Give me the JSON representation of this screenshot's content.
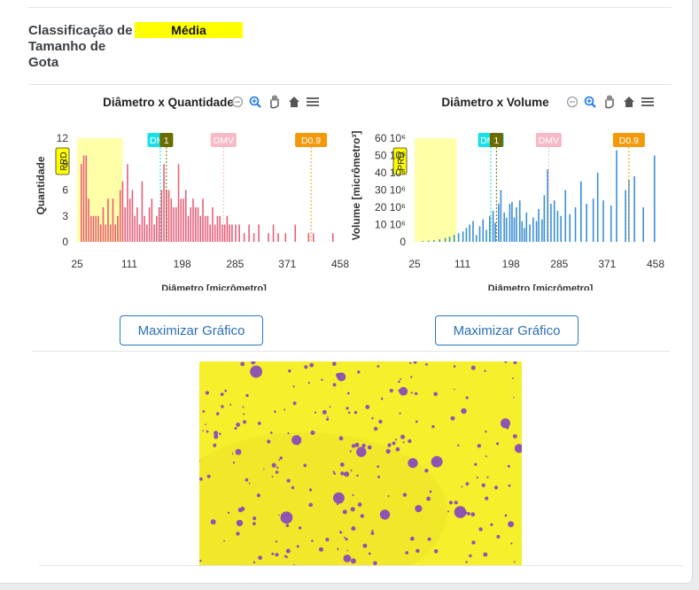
{
  "classification": {
    "label": "Classificação de Tamanho de Gota",
    "value": "Média",
    "value_color": "#ffff00"
  },
  "toolbar_icons": [
    "zoom-out-icon",
    "zoom-in-icon",
    "pan-hand-icon",
    "home-icon",
    "menu-icon"
  ],
  "buttons": {
    "maximize_left": "Maximizar Gráfico",
    "maximize_right": "Maximizar Gráfico"
  },
  "chart_data": [
    {
      "type": "bar",
      "title": "Diâmetro x Quantidade",
      "xlabel": "Diâmetro [micrômetro]",
      "ylabel": "Quantidade",
      "xlim": [
        25,
        458
      ],
      "ylim": [
        0,
        12
      ],
      "x_ticks": [
        "25",
        "111",
        "198",
        "285",
        "371",
        "458"
      ],
      "y_ticks": [
        "0",
        "3",
        "6",
        "9",
        "12"
      ],
      "color": "#e8607a",
      "shaded_band": {
        "label": "PRD",
        "x": [
          25,
          100
        ],
        "color": "#ffffa8"
      },
      "markers": [
        {
          "label": "DMN",
          "x": 162,
          "color": "#19e0e8"
        },
        {
          "label": "1",
          "x": 172,
          "color": "#6b6b00"
        },
        {
          "label": "DMV",
          "x": 266,
          "color": "#f7b9c6"
        },
        {
          "label": "D0.9",
          "x": 410,
          "color": "#f29a0b"
        }
      ],
      "x": [
        32,
        36,
        40,
        44,
        48,
        52,
        56,
        60,
        64,
        68,
        72,
        76,
        80,
        84,
        88,
        92,
        96,
        100,
        104,
        108,
        112,
        116,
        120,
        124,
        128,
        132,
        136,
        140,
        144,
        148,
        152,
        156,
        160,
        164,
        168,
        172,
        176,
        180,
        184,
        188,
        192,
        196,
        200,
        204,
        208,
        212,
        216,
        220,
        224,
        228,
        232,
        236,
        240,
        244,
        248,
        252,
        256,
        260,
        264,
        268,
        272,
        276,
        280,
        286,
        292,
        300,
        308,
        316,
        324,
        340,
        348,
        356,
        368,
        384,
        406,
        414,
        446
      ],
      "values": [
        9,
        10,
        10,
        5,
        3,
        3,
        3,
        3,
        2,
        4,
        2,
        5,
        2,
        5,
        2,
        3,
        6,
        7,
        4,
        9,
        5,
        6,
        3,
        4,
        2,
        7,
        3,
        2,
        4,
        5,
        2,
        3,
        4,
        6,
        9,
        6,
        6,
        5,
        4,
        4,
        9,
        5,
        5,
        6,
        3,
        4,
        5,
        4,
        4,
        3,
        5,
        3,
        3,
        2,
        4,
        2,
        3,
        3,
        2,
        2,
        3,
        2,
        2,
        2,
        2,
        1,
        2,
        1,
        2,
        1,
        2,
        1,
        1,
        2,
        1,
        1,
        1
      ]
    },
    {
      "type": "bar",
      "title": "Diâmetro x Volume",
      "xlabel": "Diâmetro [micrômetro]",
      "ylabel": "Volume [micrômetro³]",
      "xlim": [
        25,
        458
      ],
      "ylim": [
        0,
        60000000
      ],
      "x_ticks": [
        "25",
        "111",
        "198",
        "285",
        "371",
        "458"
      ],
      "y_ticks": [
        "0",
        "10 10⁶",
        "20 10⁶",
        "30 10⁶",
        "40 10⁶",
        "50 10⁶",
        "60 10⁶"
      ],
      "color": "#3a8fd6",
      "shaded_band": {
        "label": "PRD",
        "x": [
          25,
          100
        ],
        "color": "#ffffa8"
      },
      "markers": [
        {
          "label": "DMN",
          "x": 162,
          "color": "#19e0e8"
        },
        {
          "label": "1",
          "x": 172,
          "color": "#6b6b00"
        },
        {
          "label": "DMV",
          "x": 266,
          "color": "#f7b9c6"
        },
        {
          "label": "D0.9",
          "x": 410,
          "color": "#f29a0b"
        }
      ],
      "x": [
        40,
        50,
        60,
        70,
        80,
        88,
        96,
        104,
        112,
        118,
        124,
        130,
        136,
        142,
        148,
        154,
        160,
        166,
        170,
        176,
        180,
        186,
        190,
        196,
        200,
        204,
        208,
        214,
        218,
        222,
        226,
        232,
        238,
        244,
        248,
        254,
        258,
        264,
        270,
        276,
        282,
        288,
        296,
        304,
        314,
        324,
        334,
        346,
        354,
        364,
        378,
        388,
        404,
        410,
        420,
        436,
        456
      ],
      "values": [
        500000,
        700000,
        1000000,
        1500000,
        2200000,
        3000000,
        4000000,
        5000000,
        6000000,
        8000000,
        10000000,
        12000000,
        4000000,
        9000000,
        13000000,
        7000000,
        15000000,
        18000000,
        11000000,
        22000000,
        30000000,
        17000000,
        14000000,
        22000000,
        23000000,
        14000000,
        20000000,
        24000000,
        12000000,
        8000000,
        17000000,
        10000000,
        14000000,
        12000000,
        19000000,
        13000000,
        27000000,
        42000000,
        22000000,
        24000000,
        18000000,
        15000000,
        30000000,
        16000000,
        20000000,
        35000000,
        22000000,
        25000000,
        40000000,
        24000000,
        21000000,
        53000000,
        30000000,
        36000000,
        38000000,
        20000000,
        50000000
      ]
    }
  ],
  "photo": {
    "background": "#f5ef2c",
    "dot_color": "#8a4bb8"
  }
}
